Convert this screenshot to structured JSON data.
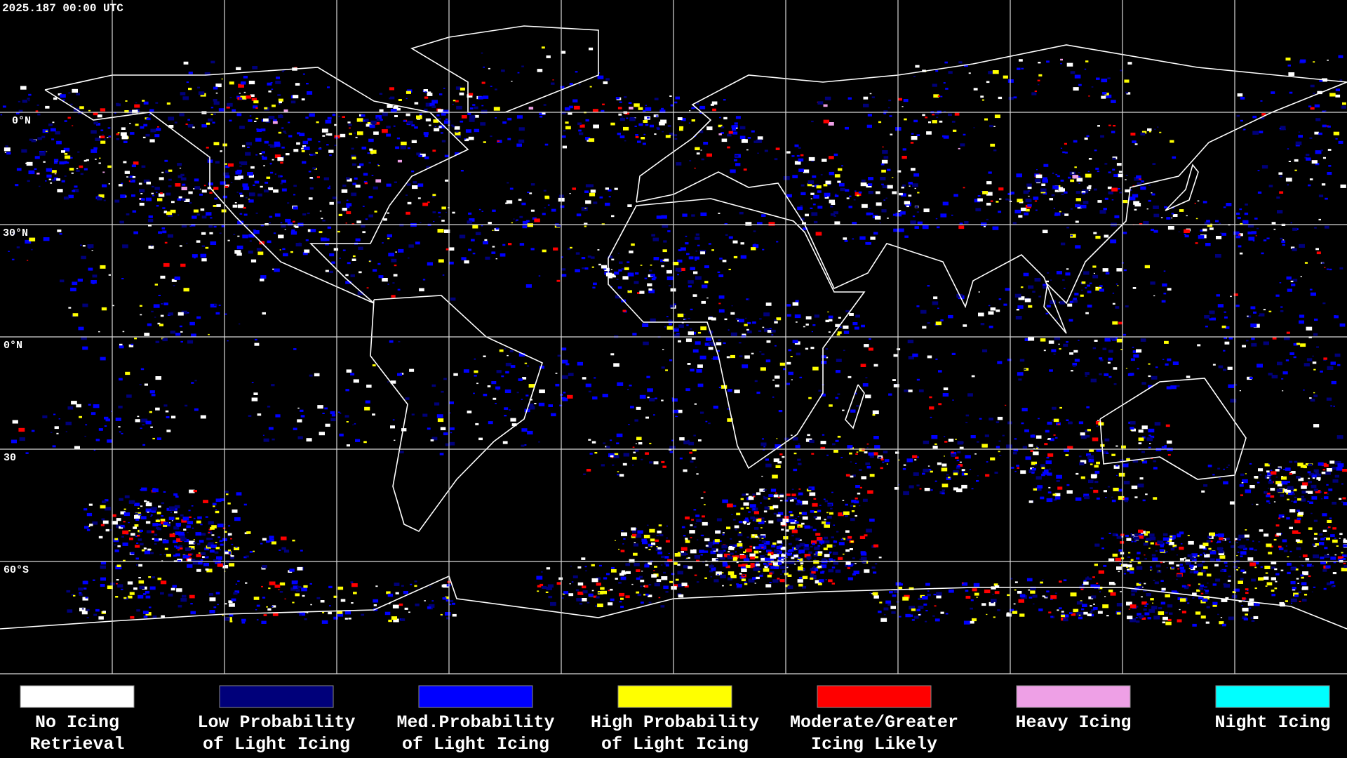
{
  "header": {
    "timestamp": "2025.187 00:00 UTC"
  },
  "map": {
    "lat_labels": [
      "0°N",
      "30°N",
      "0°N",
      "30",
      "60°S"
    ]
  },
  "legend": [
    {
      "color": "#ffffff",
      "label": [
        "No Icing",
        "Retrieval"
      ]
    },
    {
      "color": "#00007a",
      "label": [
        "Low Probability",
        "of Light Icing"
      ]
    },
    {
      "color": "#0000ff",
      "label": [
        "Med.Probability",
        "of Light Icing"
      ]
    },
    {
      "color": "#ffff00",
      "label": [
        "High Probability",
        "of Light Icing"
      ]
    },
    {
      "color": "#ff0000",
      "label": [
        "Moderate/Greater",
        "Icing Likely"
      ]
    },
    {
      "color": "#eea0e6",
      "label": [
        "Heavy Icing"
      ]
    },
    {
      "color": "#00ffff",
      "label": [
        "Night Icing"
      ]
    }
  ]
}
